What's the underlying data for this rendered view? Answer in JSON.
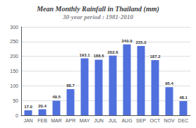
{
  "chart_data": {
    "type": "bar",
    "title": "Mean Monthly Rainfall in Thailand (mm)",
    "subtitle": "30-year period : 1981-2010",
    "categories": [
      "JAN",
      "FEB",
      "MAR",
      "APR",
      "MAY",
      "JUN",
      "JUL",
      "AUG",
      "SEP",
      "OCT",
      "NOV",
      "DEC"
    ],
    "values": [
      17.0,
      20.4,
      49.5,
      88.7,
      193.1,
      188.6,
      202.6,
      240.9,
      235.0,
      187.2,
      95.4,
      48.1
    ],
    "value_labels": [
      "17.0",
      "20.4",
      "49.5",
      "88.7",
      "193.1",
      "188.6",
      "202.6",
      "240.9",
      "235.0",
      "187.2",
      "95.4",
      "48.1"
    ],
    "data_labels": true,
    "ylim": [
      0,
      300
    ],
    "yticks": [
      0,
      50,
      100,
      150,
      200,
      250,
      300
    ],
    "grid": true
  }
}
